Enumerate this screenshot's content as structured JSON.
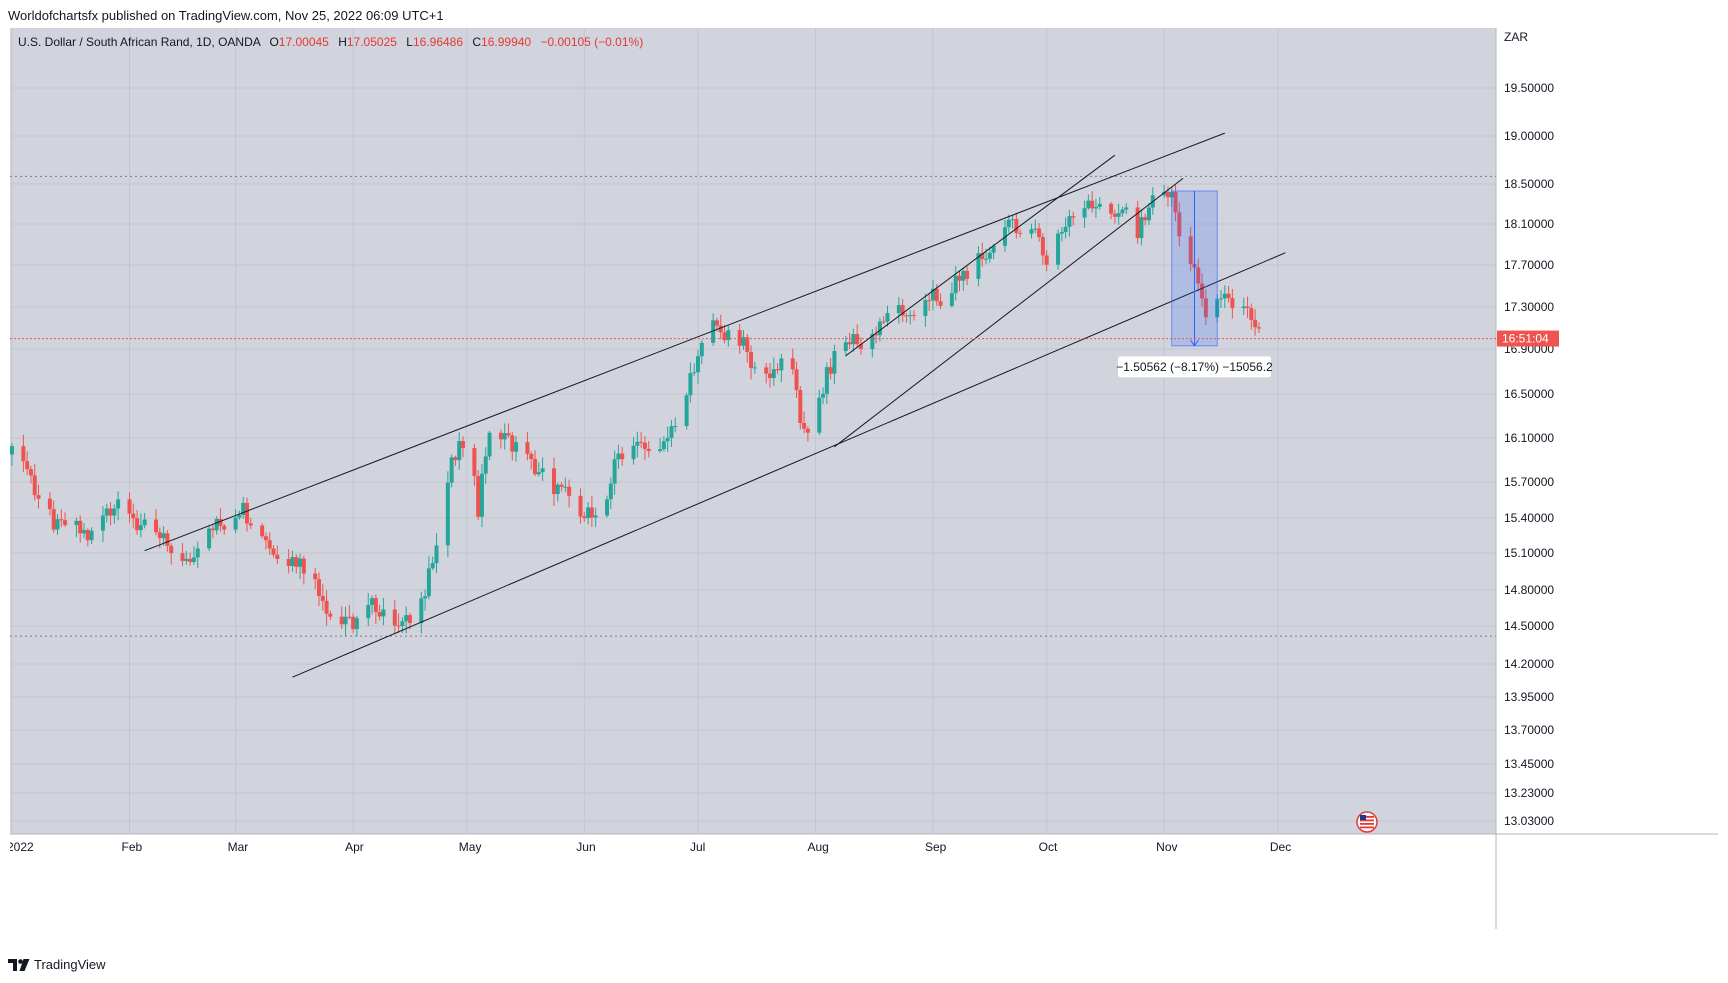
{
  "header": {
    "published": "Worldofchartsfx published on TradingView.com, Nov 25, 2022 06:09 UTC+1"
  },
  "legend": {
    "symbol": "U.S. Dollar / South African Rand, 1D, OANDA",
    "o_label": "O",
    "o": "17.00045",
    "h_label": "H",
    "h": "17.05025",
    "l_label": "L",
    "l": "16.96486",
    "c_label": "C",
    "c": "16.99940",
    "change": "−0.00105 (−0.01%)"
  },
  "currency": "ZAR",
  "price_tag": "16:51:04",
  "measure_label": "−1.50562 (−8.17%) −15056.2",
  "footer": {
    "brand": "TradingView"
  },
  "colors": {
    "up": "#26a69a",
    "down": "#ef5350",
    "bg": "#d1d4dc",
    "measure": "#2962ff"
  },
  "chart_data": {
    "type": "candlestick",
    "title": "U.S. Dollar / South African Rand, 1D, OANDA",
    "y_ticks": [
      19.5,
      19.0,
      18.5,
      18.1,
      17.7,
      17.3,
      16.9,
      16.5,
      16.1,
      15.7,
      15.4,
      15.1,
      14.8,
      14.5,
      14.2,
      13.95,
      13.7,
      13.45,
      13.23,
      13.03
    ],
    "y_tick_labels": [
      "19.50000",
      "19.00000",
      "18.50000",
      "18.10000",
      "17.70000",
      "17.30000",
      "16.90000",
      "16.50000",
      "16.10000",
      "15.70000",
      "15.40000",
      "15.10000",
      "14.80000",
      "14.50000",
      "14.20000",
      "13.95000",
      "13.70000",
      "13.45000",
      "13.23000",
      "13.03000"
    ],
    "x_labels": [
      {
        "label": "2022",
        "day": 0
      },
      {
        "label": "Feb",
        "day": 31
      },
      {
        "label": "Mar",
        "day": 59
      },
      {
        "label": "Apr",
        "day": 90
      },
      {
        "label": "May",
        "day": 120
      },
      {
        "label": "Jun",
        "day": 151
      },
      {
        "label": "Jul",
        "day": 181
      },
      {
        "label": "Aug",
        "day": 212
      },
      {
        "label": "Sep",
        "day": 243
      },
      {
        "label": "Oct",
        "day": 273
      },
      {
        "label": "Nov",
        "day": 304
      },
      {
        "label": "Dec",
        "day": 334
      }
    ],
    "horizontal_levels": [
      18.58,
      14.42
    ],
    "last_close": 16.9994,
    "trendlines": [
      {
        "from": [
          35,
          15.12
        ],
        "to": [
          320,
          19.03
        ]
      },
      {
        "from": [
          74,
          14.1
        ],
        "to": [
          336,
          17.82
        ]
      },
      {
        "from": [
          217,
          16.02
        ],
        "to": [
          309,
          18.56
        ]
      },
      {
        "from": [
          220,
          16.84
        ],
        "to": [
          291,
          18.8
        ]
      }
    ],
    "measure": {
      "start_day": 306,
      "end_day": 318,
      "top": 18.43,
      "bottom": 16.93,
      "change": -1.50562,
      "percent": -8.17,
      "ticks": -15056.2
    },
    "anchors": [
      [
        0,
        15.95
      ],
      [
        2,
        16.0
      ],
      [
        6,
        15.65
      ],
      [
        12,
        15.3
      ],
      [
        16,
        15.4
      ],
      [
        20,
        15.2
      ],
      [
        24,
        15.45
      ],
      [
        29,
        15.6
      ],
      [
        33,
        15.35
      ],
      [
        37,
        15.25
      ],
      [
        42,
        15.15
      ],
      [
        46,
        15.05
      ],
      [
        52,
        15.3
      ],
      [
        56,
        15.35
      ],
      [
        60,
        15.5
      ],
      [
        65,
        15.35
      ],
      [
        70,
        15.05
      ],
      [
        75,
        15.05
      ],
      [
        80,
        14.9
      ],
      [
        84,
        14.6
      ],
      [
        88,
        14.5
      ],
      [
        92,
        14.58
      ],
      [
        96,
        14.68
      ],
      [
        100,
        14.6
      ],
      [
        104,
        14.52
      ],
      [
        108,
        14.65
      ],
      [
        110,
        14.95
      ],
      [
        113,
        15.4
      ],
      [
        116,
        15.85
      ],
      [
        119,
        16.05
      ],
      [
        121,
        16.15
      ],
      [
        123,
        15.5
      ],
      [
        126,
        16.2
      ],
      [
        129,
        16.1
      ],
      [
        133,
        16.05
      ],
      [
        137,
        15.85
      ],
      [
        141,
        15.75
      ],
      [
        145,
        15.6
      ],
      [
        148,
        15.55
      ],
      [
        152,
        15.45
      ],
      [
        155,
        15.3
      ],
      [
        157,
        15.6
      ],
      [
        160,
        15.95
      ],
      [
        163,
        16.05
      ],
      [
        167,
        16.0
      ],
      [
        170,
        15.85
      ],
      [
        173,
        16.1
      ],
      [
        176,
        16.35
      ],
      [
        179,
        16.6
      ],
      [
        182,
        16.9
      ],
      [
        185,
        17.1
      ],
      [
        188,
        17.05
      ],
      [
        191,
        17.08
      ],
      [
        194,
        16.85
      ],
      [
        197,
        16.6
      ],
      [
        200,
        16.7
      ],
      [
        203,
        16.75
      ],
      [
        206,
        16.65
      ],
      [
        208,
        16.25
      ],
      [
        210,
        16.2
      ],
      [
        213,
        16.45
      ],
      [
        216,
        16.75
      ],
      [
        219,
        16.95
      ],
      [
        222,
        17.0
      ],
      [
        225,
        16.85
      ],
      [
        228,
        17.05
      ],
      [
        231,
        17.2
      ],
      [
        234,
        17.3
      ],
      [
        237,
        17.2
      ],
      [
        240,
        17.3
      ],
      [
        243,
        17.5
      ],
      [
        246,
        17.15
      ],
      [
        249,
        17.55
      ],
      [
        252,
        17.65
      ],
      [
        255,
        17.75
      ],
      [
        258,
        17.85
      ],
      [
        261,
        17.9
      ],
      [
        264,
        18.15
      ],
      [
        267,
        18.0
      ],
      [
        270,
        18.1
      ],
      [
        273,
        17.7
      ],
      [
        276,
        17.95
      ],
      [
        279,
        18.2
      ],
      [
        282,
        18.3
      ],
      [
        285,
        18.25
      ],
      [
        288,
        18.4
      ],
      [
        291,
        18.1
      ],
      [
        294,
        18.3
      ],
      [
        297,
        18.0
      ],
      [
        300,
        18.3
      ],
      [
        303,
        18.35
      ],
      [
        306,
        18.45
      ],
      [
        308,
        17.9
      ],
      [
        310,
        17.75
      ],
      [
        312,
        17.7
      ],
      [
        314,
        17.3
      ],
      [
        316,
        17.25
      ],
      [
        318,
        17.3
      ],
      [
        320,
        17.35
      ],
      [
        323,
        17.3
      ],
      [
        326,
        17.25
      ],
      [
        328,
        17.05
      ],
      [
        330,
        17.0
      ]
    ]
  }
}
